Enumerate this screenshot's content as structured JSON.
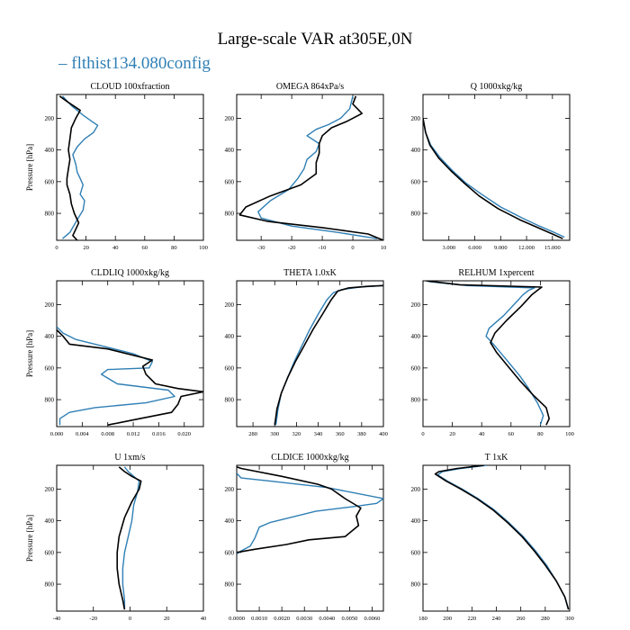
{
  "figure": {
    "title": "Large-scale VAR at305E,0N",
    "legend_label": "flthist134.080config",
    "legend_marker": "–"
  },
  "colors": {
    "model": "#2f7fb5",
    "reference": "#000000"
  },
  "chart_data": [
    {
      "type": "line",
      "title": "CLOUD 100xfraction",
      "ylabel": "Pressure [hPa]",
      "xlim": [
        0,
        100
      ],
      "ylim": [
        970,
        50
      ],
      "xticks": [
        0,
        20,
        40,
        60,
        80,
        100
      ],
      "xtick_labels": [
        "0",
        "20",
        "40",
        "60",
        "80",
        "100"
      ],
      "yticks": [
        200,
        400,
        600,
        800
      ],
      "series": [
        {
          "name": "flthist134.080config",
          "color": "model",
          "x": [
            4,
            10,
            18,
            24,
            28,
            25,
            19,
            14,
            11,
            13,
            14,
            16,
            18,
            16,
            19,
            18,
            14,
            9,
            4
          ],
          "y": [
            60,
            120,
            180,
            220,
            245,
            290,
            330,
            380,
            430,
            490,
            540,
            580,
            620,
            680,
            720,
            780,
            840,
            920,
            960
          ]
        },
        {
          "name": "",
          "color": "reference",
          "x": [
            2,
            8,
            16,
            13,
            10,
            9,
            8,
            9,
            8,
            7,
            7,
            9,
            10,
            12,
            15,
            13,
            11,
            14
          ],
          "y": [
            60,
            100,
            150,
            200,
            260,
            330,
            400,
            460,
            520,
            580,
            620,
            680,
            740,
            800,
            860,
            900,
            940,
            970
          ]
        }
      ]
    },
    {
      "type": "line",
      "title": "OMEGA 864xPa/s",
      "ylabel": "",
      "xlim": [
        -38,
        10
      ],
      "ylim": [
        970,
        50
      ],
      "xticks": [
        -30,
        -20,
        -10,
        0,
        10
      ],
      "xtick_labels": [
        "-30",
        "-20",
        "-10",
        "0",
        "10"
      ],
      "yticks": [
        200,
        400,
        600,
        800
      ],
      "series": [
        {
          "name": "flthist134.080config",
          "color": "model",
          "x": [
            0,
            -1,
            -4,
            -8,
            -12,
            -15,
            -11,
            -12,
            -15,
            -16,
            -18,
            -21,
            -27,
            -31,
            -30,
            -20,
            -5,
            8
          ],
          "y": [
            60,
            140,
            200,
            240,
            270,
            310,
            360,
            410,
            460,
            520,
            580,
            650,
            720,
            790,
            830,
            880,
            920,
            960
          ]
        },
        {
          "name": "",
          "color": "reference",
          "x": [
            1,
            0,
            3,
            -2,
            -7,
            -10,
            -11,
            -11,
            -12,
            -12,
            -17,
            -27,
            -35,
            -37,
            -28,
            -10,
            5,
            10
          ],
          "y": [
            60,
            110,
            170,
            220,
            260,
            310,
            360,
            420,
            480,
            550,
            620,
            690,
            760,
            810,
            850,
            890,
            930,
            970
          ]
        }
      ]
    },
    {
      "type": "line",
      "title": "Q 1000xkg/kg",
      "ylabel": "",
      "xlim": [
        0,
        17000
      ],
      "ylim": [
        970,
        50
      ],
      "xticks": [
        3000,
        6000,
        9000,
        12000,
        15000
      ],
      "xtick_labels": [
        "3.000",
        "6.000",
        "9.000",
        "12.000",
        "15.000"
      ],
      "yticks": [
        200,
        400,
        600,
        800
      ],
      "series": [
        {
          "name": "flthist134.080config",
          "color": "model",
          "x": [
            0,
            300,
            900,
            2000,
            3400,
            5000,
            6800,
            9000,
            11500,
            13500,
            15200,
            16400
          ],
          "y": [
            200,
            290,
            370,
            450,
            530,
            610,
            680,
            760,
            830,
            880,
            920,
            950
          ]
        },
        {
          "name": "",
          "color": "reference",
          "x": [
            0,
            300,
            800,
            1800,
            3200,
            4800,
            6500,
            8700,
            11200,
            13300,
            15000,
            16200
          ],
          "y": [
            200,
            290,
            370,
            450,
            530,
            610,
            690,
            770,
            840,
            890,
            930,
            960
          ]
        }
      ]
    },
    {
      "type": "line",
      "title": "CLDLIQ 1000xkg/kg",
      "ylabel": "Pressure [hPa]",
      "xlim": [
        0,
        0.023
      ],
      "ylim": [
        970,
        50
      ],
      "xticks": [
        0,
        0.004,
        0.008,
        0.012,
        0.016,
        0.02
      ],
      "xtick_labels": [
        "0.000",
        "0.004",
        "0.008",
        "0.012",
        "0.016",
        "0.020"
      ],
      "yticks": [
        200,
        400,
        600,
        800
      ],
      "series": [
        {
          "name": "flthist134.080config",
          "color": "model",
          "x": [
            0.0,
            0.001,
            0.003,
            0.007,
            0.012,
            0.015,
            0.0145,
            0.008,
            0.007,
            0.0095,
            0.0175,
            0.0185,
            0.014,
            0.006,
            0.002,
            0.0005,
            0.0005
          ],
          "y": [
            340,
            380,
            420,
            460,
            510,
            560,
            600,
            610,
            640,
            700,
            740,
            780,
            820,
            850,
            880,
            920,
            960
          ]
        },
        {
          "name": "",
          "color": "reference",
          "x": [
            0.0,
            0.001,
            0.002,
            0.008,
            0.015,
            0.0135,
            0.014,
            0.0155,
            0.019,
            0.023,
            0.0195,
            0.019,
            0.018,
            0.013,
            0.008
          ],
          "y": [
            360,
            400,
            450,
            480,
            550,
            590,
            640,
            700,
            730,
            750,
            780,
            830,
            880,
            920,
            960
          ]
        }
      ]
    },
    {
      "type": "line",
      "title": "THETA 1.0xK",
      "ylabel": "",
      "xlim": [
        265,
        400
      ],
      "ylim": [
        970,
        50
      ],
      "xticks": [
        280,
        300,
        320,
        340,
        360,
        380,
        400
      ],
      "xtick_labels": [
        "280",
        "300",
        "320",
        "340",
        "360",
        "380",
        "400"
      ],
      "yticks": [
        200,
        400,
        600,
        800
      ],
      "series": [
        {
          "name": "flthist134.080config",
          "color": "model",
          "x": [
            400,
            378,
            362,
            354,
            348,
            340,
            332,
            325,
            318,
            312,
            306,
            303,
            301
          ],
          "y": [
            80,
            90,
            105,
            125,
            170,
            260,
            360,
            460,
            560,
            660,
            760,
            860,
            960
          ]
        },
        {
          "name": "",
          "color": "reference",
          "x": [
            400,
            385,
            368,
            358,
            352,
            344,
            335,
            327,
            319,
            312,
            306,
            302,
            300
          ],
          "y": [
            80,
            85,
            95,
            115,
            170,
            260,
            360,
            460,
            560,
            660,
            760,
            860,
            960
          ]
        }
      ]
    },
    {
      "type": "line",
      "title": "RELHUM 1xpercent",
      "ylabel": "",
      "xlim": [
        0,
        100
      ],
      "ylim": [
        970,
        50
      ],
      "xticks": [
        0,
        20,
        40,
        60,
        80,
        100
      ],
      "xtick_labels": [
        "0",
        "20",
        "40",
        "60",
        "80",
        "100"
      ],
      "yticks": [
        200,
        400,
        600,
        800
      ],
      "series": [
        {
          "name": "flthist134.080config",
          "color": "model",
          "x": [
            4,
            30,
            76,
            72,
            68,
            65,
            55,
            45,
            43,
            48,
            58,
            66,
            72,
            78,
            82,
            80
          ],
          "y": [
            55,
            80,
            95,
            110,
            140,
            170,
            270,
            350,
            400,
            450,
            560,
            650,
            730,
            820,
            900,
            960
          ]
        },
        {
          "name": "",
          "color": "reference",
          "x": [
            2,
            25,
            81,
            78,
            74,
            67,
            57,
            49,
            46,
            50,
            58,
            66,
            75,
            84,
            86,
            84
          ],
          "y": [
            50,
            75,
            90,
            110,
            140,
            210,
            300,
            380,
            440,
            500,
            590,
            680,
            770,
            850,
            920,
            960
          ]
        }
      ]
    },
    {
      "type": "line",
      "title": "U 1xm/s",
      "ylabel": "Pressure [hPa]",
      "xlim": [
        -40,
        40
      ],
      "ylim": [
        970,
        50
      ],
      "xticks": [
        -40,
        -20,
        0,
        20,
        40
      ],
      "xtick_labels": [
        "-40",
        "-20",
        "0",
        "20",
        "40"
      ],
      "yticks": [
        200,
        400,
        600,
        800
      ],
      "series": [
        {
          "name": "flthist134.080config",
          "color": "model",
          "x": [
            -3,
            -1,
            2,
            5,
            4,
            2,
            1,
            -1,
            -3,
            -4,
            -4,
            -3,
            -3
          ],
          "y": [
            60,
            90,
            120,
            150,
            220,
            300,
            400,
            500,
            600,
            700,
            800,
            900,
            960
          ]
        },
        {
          "name": "",
          "color": "reference",
          "x": [
            -6,
            -3,
            1,
            6,
            5,
            1,
            -3,
            -6,
            -7,
            -7,
            -6,
            -4,
            -3
          ],
          "y": [
            60,
            90,
            120,
            150,
            200,
            280,
            380,
            500,
            600,
            700,
            800,
            900,
            960
          ]
        }
      ]
    },
    {
      "type": "line",
      "title": "CLDICE 1000xkg/kg",
      "ylabel": "",
      "xlim": [
        0,
        0.0065
      ],
      "ylim": [
        970,
        50
      ],
      "xticks": [
        0,
        0.001,
        0.002,
        0.003,
        0.004,
        0.005,
        0.006
      ],
      "xtick_labels": [
        "0.0000",
        "0.0010",
        "0.0020",
        "0.0030",
        "0.0040",
        "0.0050",
        "0.0060"
      ],
      "yticks": [
        200,
        400,
        600,
        800
      ],
      "series": [
        {
          "name": "flthist134.080config",
          "color": "model",
          "x": [
            0.0,
            0.0002,
            0.0015,
            0.004,
            0.0065,
            0.0062,
            0.0052,
            0.0035,
            0.0015,
            0.001,
            0.0008,
            0.0006,
            0.0002,
            0.0
          ],
          "y": [
            100,
            130,
            150,
            190,
            260,
            290,
            310,
            340,
            410,
            440,
            510,
            560,
            590,
            610
          ]
        },
        {
          "name": "",
          "color": "reference",
          "x": [
            0.0,
            0.0002,
            0.002,
            0.0036,
            0.0042,
            0.0048,
            0.0055,
            0.0053,
            0.0054,
            0.0048,
            0.0032,
            0.0022,
            0.0008,
            0.0
          ],
          "y": [
            60,
            70,
            120,
            170,
            200,
            260,
            320,
            370,
            430,
            500,
            520,
            550,
            580,
            600
          ]
        }
      ]
    },
    {
      "type": "line",
      "title": "T 1xK",
      "ylabel": "",
      "xlim": [
        180,
        300
      ],
      "ylim": [
        970,
        50
      ],
      "xticks": [
        180,
        200,
        220,
        240,
        260,
        280,
        300
      ],
      "xtick_labels": [
        "180",
        "200",
        "220",
        "240",
        "260",
        "280",
        "300"
      ],
      "yticks": [
        200,
        400,
        600,
        800
      ],
      "series": [
        {
          "name": "flthist134.080config",
          "color": "model",
          "x": [
            232,
            211,
            196,
            192,
            200,
            212,
            225,
            238,
            250,
            262,
            272,
            281,
            289,
            296,
            299
          ],
          "y": [
            50,
            70,
            90,
            110,
            150,
            200,
            260,
            330,
            410,
            500,
            590,
            680,
            780,
            880,
            960
          ]
        },
        {
          "name": "",
          "color": "reference",
          "x": [
            230,
            208,
            193,
            190,
            199,
            211,
            224,
            237,
            249,
            261,
            271,
            280,
            289,
            296,
            299
          ],
          "y": [
            50,
            70,
            90,
            105,
            150,
            200,
            260,
            330,
            410,
            500,
            590,
            680,
            780,
            880,
            960
          ]
        }
      ]
    }
  ]
}
